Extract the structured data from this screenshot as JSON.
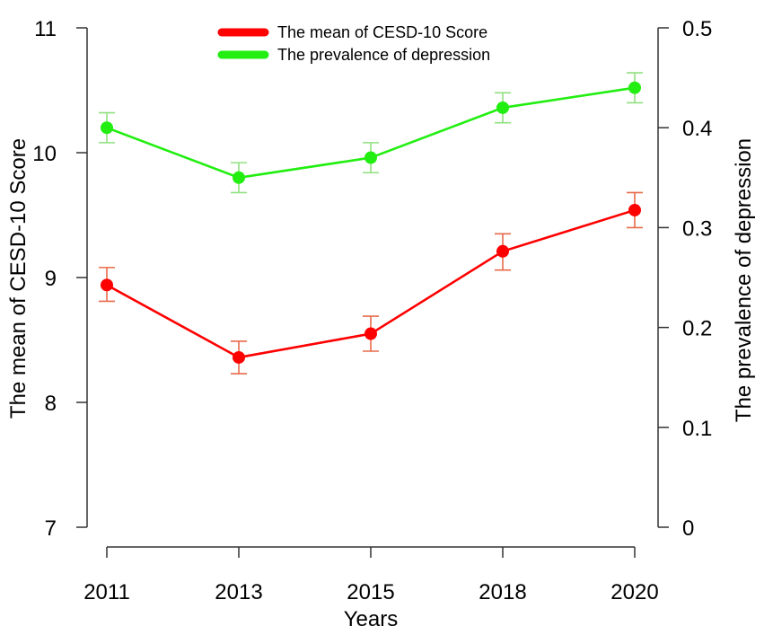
{
  "chart_data": {
    "type": "line",
    "categories": [
      "2011",
      "2013",
      "2015",
      "2018",
      "2020"
    ],
    "xlabel": "Years",
    "ylabel": "The mean of CESD-10 Score",
    "y2label": "The prevalence of depression",
    "ylim": [
      7,
      11
    ],
    "y2lim": [
      0,
      0.5
    ],
    "yticks": [
      "7",
      "8",
      "9",
      "10",
      "11"
    ],
    "y2ticks": [
      "0",
      "0.1",
      "0.2",
      "0.3",
      "0.4",
      "0.5"
    ],
    "legend_position": "top-center",
    "series": [
      {
        "name": "The mean of CESD-10 Score",
        "axis": "left",
        "color": "#ff0000",
        "error_color": "#e86a4a",
        "values": [
          8.94,
          8.36,
          8.55,
          9.21,
          9.54
        ],
        "lower": [
          8.81,
          8.23,
          8.41,
          9.06,
          9.4
        ],
        "upper": [
          9.08,
          8.49,
          8.69,
          9.35,
          9.68
        ]
      },
      {
        "name": "The prevalence of depression",
        "axis": "right",
        "color": "#22ee11",
        "error_color": "#8fe07f",
        "values": [
          0.4,
          0.35,
          0.37,
          0.42,
          0.44
        ],
        "lower": [
          0.385,
          0.335,
          0.355,
          0.405,
          0.425
        ],
        "upper": [
          0.415,
          0.365,
          0.385,
          0.435,
          0.455
        ]
      }
    ]
  }
}
